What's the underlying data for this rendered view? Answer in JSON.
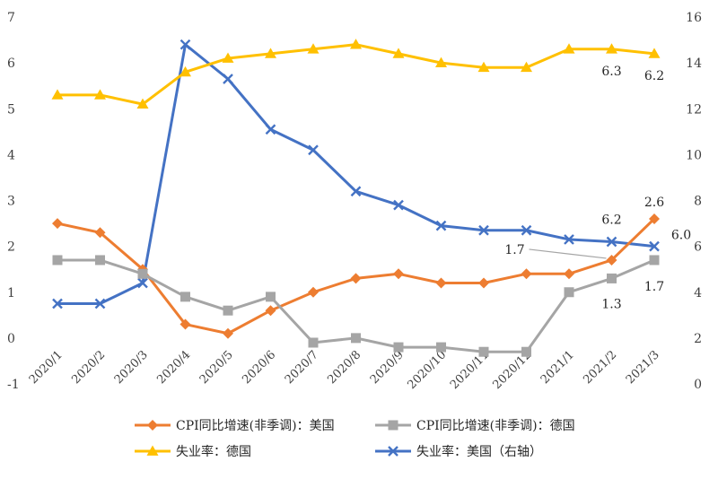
{
  "chart_data": {
    "type": "line",
    "title": "",
    "categories": [
      "2020/1",
      "2020/2",
      "2020/3",
      "2020/4",
      "2020/5",
      "2020/6",
      "2020/7",
      "2020/8",
      "2020/9",
      "2020/10",
      "2020/11",
      "2020/12",
      "2021/1",
      "2021/2",
      "2021/3"
    ],
    "y_left": {
      "ylim": [
        -1,
        7
      ],
      "ticks": [
        "-1",
        "0",
        "1",
        "2",
        "3",
        "4",
        "5",
        "6",
        "7"
      ]
    },
    "y_right": {
      "ylim": [
        0,
        16
      ],
      "ticks": [
        "0",
        "2",
        "4",
        "6",
        "8",
        "10",
        "12",
        "14",
        "16"
      ]
    },
    "grid": false,
    "legend_position": "bottom",
    "series": [
      {
        "name": "CPI同比增速(非季调)：美国",
        "axis": "left",
        "color": "#ED7D31",
        "marker": "diamond",
        "values": [
          2.5,
          2.3,
          1.5,
          0.3,
          0.1,
          0.6,
          1.0,
          1.3,
          1.4,
          1.2,
          1.2,
          1.4,
          1.4,
          1.7,
          2.6
        ]
      },
      {
        "name": "CPI同比增速(非季调)：德国",
        "axis": "left",
        "color": "#A5A5A5",
        "marker": "square",
        "values": [
          1.7,
          1.7,
          1.4,
          0.9,
          0.6,
          0.9,
          -0.1,
          0.0,
          -0.2,
          -0.2,
          -0.3,
          -0.3,
          1.0,
          1.3,
          1.7
        ]
      },
      {
        "name": "失业率：德国",
        "axis": "left",
        "color": "#FFC000",
        "marker": "triangle",
        "values": [
          5.3,
          5.3,
          5.1,
          5.8,
          6.1,
          6.2,
          6.3,
          6.4,
          6.2,
          6.0,
          5.9,
          5.9,
          6.3,
          6.3,
          6.2
        ]
      },
      {
        "name": "失业率：美国（右轴）",
        "axis": "right",
        "color": "#4472C4",
        "marker": "x",
        "values": [
          3.5,
          3.5,
          4.4,
          14.8,
          13.3,
          11.1,
          10.2,
          8.4,
          7.8,
          6.9,
          6.7,
          6.7,
          6.3,
          6.2,
          6.0
        ]
      }
    ],
    "data_labels": [
      {
        "text": "2.6",
        "series": 0,
        "index": 14
      },
      {
        "text": "1.7",
        "series": 1,
        "index": 14
      },
      {
        "text": "1.3",
        "series": 1,
        "index": 13
      },
      {
        "text": "1.7",
        "series": 0,
        "index": 13
      },
      {
        "text": "6.3",
        "series": 2,
        "index": 13
      },
      {
        "text": "6.2",
        "series": 2,
        "index": 14
      },
      {
        "text": "6.2",
        "series": 3,
        "index": 13
      },
      {
        "text": "6.0",
        "series": 3,
        "index": 14
      }
    ]
  }
}
